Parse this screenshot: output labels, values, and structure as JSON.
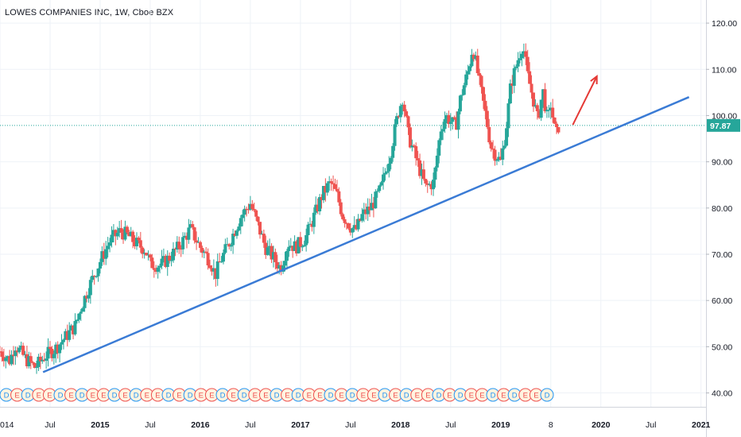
{
  "header": {
    "title": "LOWES COMPANIES INC, 1W, Cboe BZX"
  },
  "colors": {
    "up": "#26a69a",
    "down": "#ef5350",
    "trendline": "#3a7bd5",
    "arrow": "#e53935",
    "price_line": "#26a69a",
    "grid": "#eef2f7",
    "axis_text": "#131722",
    "event_fill": "#fff3e0",
    "dividend_ring": "#2196f3",
    "earnings_ring": "#ef5350"
  },
  "chart_data": {
    "type": "candlestick",
    "title": "LOWES COMPANIES INC, 1W, Cboe BZX",
    "ylim": [
      37,
      125
    ],
    "xlim": [
      2014.0,
      2021.05
    ],
    "y_ticks": [
      "40.00",
      "50.00",
      "60.00",
      "70.00",
      "80.00",
      "90.00",
      "100.00",
      "110.00",
      "120.00"
    ],
    "x_ticks": [
      {
        "label": "014",
        "t": 2014.0
      },
      {
        "label": "Jul",
        "t": 2014.5
      },
      {
        "label": "2015",
        "t": 2015.0
      },
      {
        "label": "Jul",
        "t": 2015.5
      },
      {
        "label": "2016",
        "t": 2016.0
      },
      {
        "label": "Jul",
        "t": 2016.5
      },
      {
        "label": "2017",
        "t": 2017.0
      },
      {
        "label": "Jul",
        "t": 2017.5
      },
      {
        "label": "2018",
        "t": 2018.0
      },
      {
        "label": "Jul",
        "t": 2018.5
      },
      {
        "label": "2019",
        "t": 2019.0
      },
      {
        "label": "8",
        "t": 2019.5
      },
      {
        "label": "2020",
        "t": 2020.0
      },
      {
        "label": "Jul",
        "t": 2020.5
      },
      {
        "label": "2021",
        "t": 2021.0
      }
    ],
    "last_price": {
      "label": "97.87",
      "value": 97.87
    },
    "price_path": [
      [
        2014.0,
        49.0
      ],
      [
        2014.1,
        47.0
      ],
      [
        2014.15,
        50.5
      ],
      [
        2014.25,
        47.5
      ],
      [
        2014.35,
        45.5
      ],
      [
        2014.45,
        48.0
      ],
      [
        2014.55,
        49.5
      ],
      [
        2014.65,
        52.0
      ],
      [
        2014.75,
        54.5
      ],
      [
        2014.8,
        58.0
      ],
      [
        2014.88,
        62.5
      ],
      [
        2015.0,
        68.5
      ],
      [
        2015.1,
        73.0
      ],
      [
        2015.2,
        75.0
      ],
      [
        2015.28,
        74.0
      ],
      [
        2015.35,
        72.5
      ],
      [
        2015.45,
        71.0
      ],
      [
        2015.5,
        68.0
      ],
      [
        2015.6,
        67.5
      ],
      [
        2015.7,
        69.5
      ],
      [
        2015.8,
        72.0
      ],
      [
        2015.9,
        75.5
      ],
      [
        2016.0,
        71.5
      ],
      [
        2016.1,
        68.5
      ],
      [
        2016.15,
        65.5
      ],
      [
        2016.2,
        68.5
      ],
      [
        2016.3,
        73.0
      ],
      [
        2016.4,
        78.0
      ],
      [
        2016.5,
        81.0
      ],
      [
        2016.58,
        76.0
      ],
      [
        2016.65,
        71.5
      ],
      [
        2016.72,
        69.5
      ],
      [
        2016.8,
        67.0
      ],
      [
        2016.88,
        72.5
      ],
      [
        2016.95,
        71.5
      ],
      [
        2017.05,
        73.5
      ],
      [
        2017.15,
        79.0
      ],
      [
        2017.22,
        83.0
      ],
      [
        2017.3,
        85.5
      ],
      [
        2017.37,
        82.5
      ],
      [
        2017.42,
        78.5
      ],
      [
        2017.5,
        76.0
      ],
      [
        2017.55,
        75.0
      ],
      [
        2017.62,
        78.5
      ],
      [
        2017.7,
        80.0
      ],
      [
        2017.8,
        84.0
      ],
      [
        2017.9,
        92.0
      ],
      [
        2017.97,
        100.0
      ],
      [
        2018.02,
        104.0
      ],
      [
        2018.08,
        95.5
      ],
      [
        2018.12,
        93.0
      ],
      [
        2018.18,
        89.0
      ],
      [
        2018.25,
        84.5
      ],
      [
        2018.33,
        85.5
      ],
      [
        2018.4,
        97.0
      ],
      [
        2018.45,
        100.0
      ],
      [
        2018.55,
        97.5
      ],
      [
        2018.6,
        104.0
      ],
      [
        2018.68,
        110.0
      ],
      [
        2018.72,
        115.0
      ],
      [
        2018.78,
        108.0
      ],
      [
        2018.85,
        100.0
      ],
      [
        2018.9,
        93.5
      ],
      [
        2018.95,
        91.5
      ],
      [
        2019.0,
        90.0
      ],
      [
        2019.05,
        96.5
      ],
      [
        2019.1,
        106.5
      ],
      [
        2019.17,
        112.0
      ],
      [
        2019.22,
        115.5
      ],
      [
        2019.27,
        108.5
      ],
      [
        2019.32,
        104.0
      ],
      [
        2019.37,
        99.0
      ],
      [
        2019.42,
        105.5
      ],
      [
        2019.47,
        98.5
      ],
      [
        2019.5,
        102.5
      ],
      [
        2019.55,
        95.5
      ],
      [
        2019.58,
        97.87
      ]
    ],
    "trendline": {
      "from": [
        2014.43,
        44.5
      ],
      "to": [
        2020.88,
        104.0
      ]
    },
    "arrow": {
      "from": [
        2019.72,
        98.0
      ],
      "to": [
        2019.96,
        108.5
      ]
    },
    "event_markers": {
      "pattern": [
        "D",
        "E",
        "D",
        "E",
        "E"
      ],
      "count": 51
    }
  }
}
